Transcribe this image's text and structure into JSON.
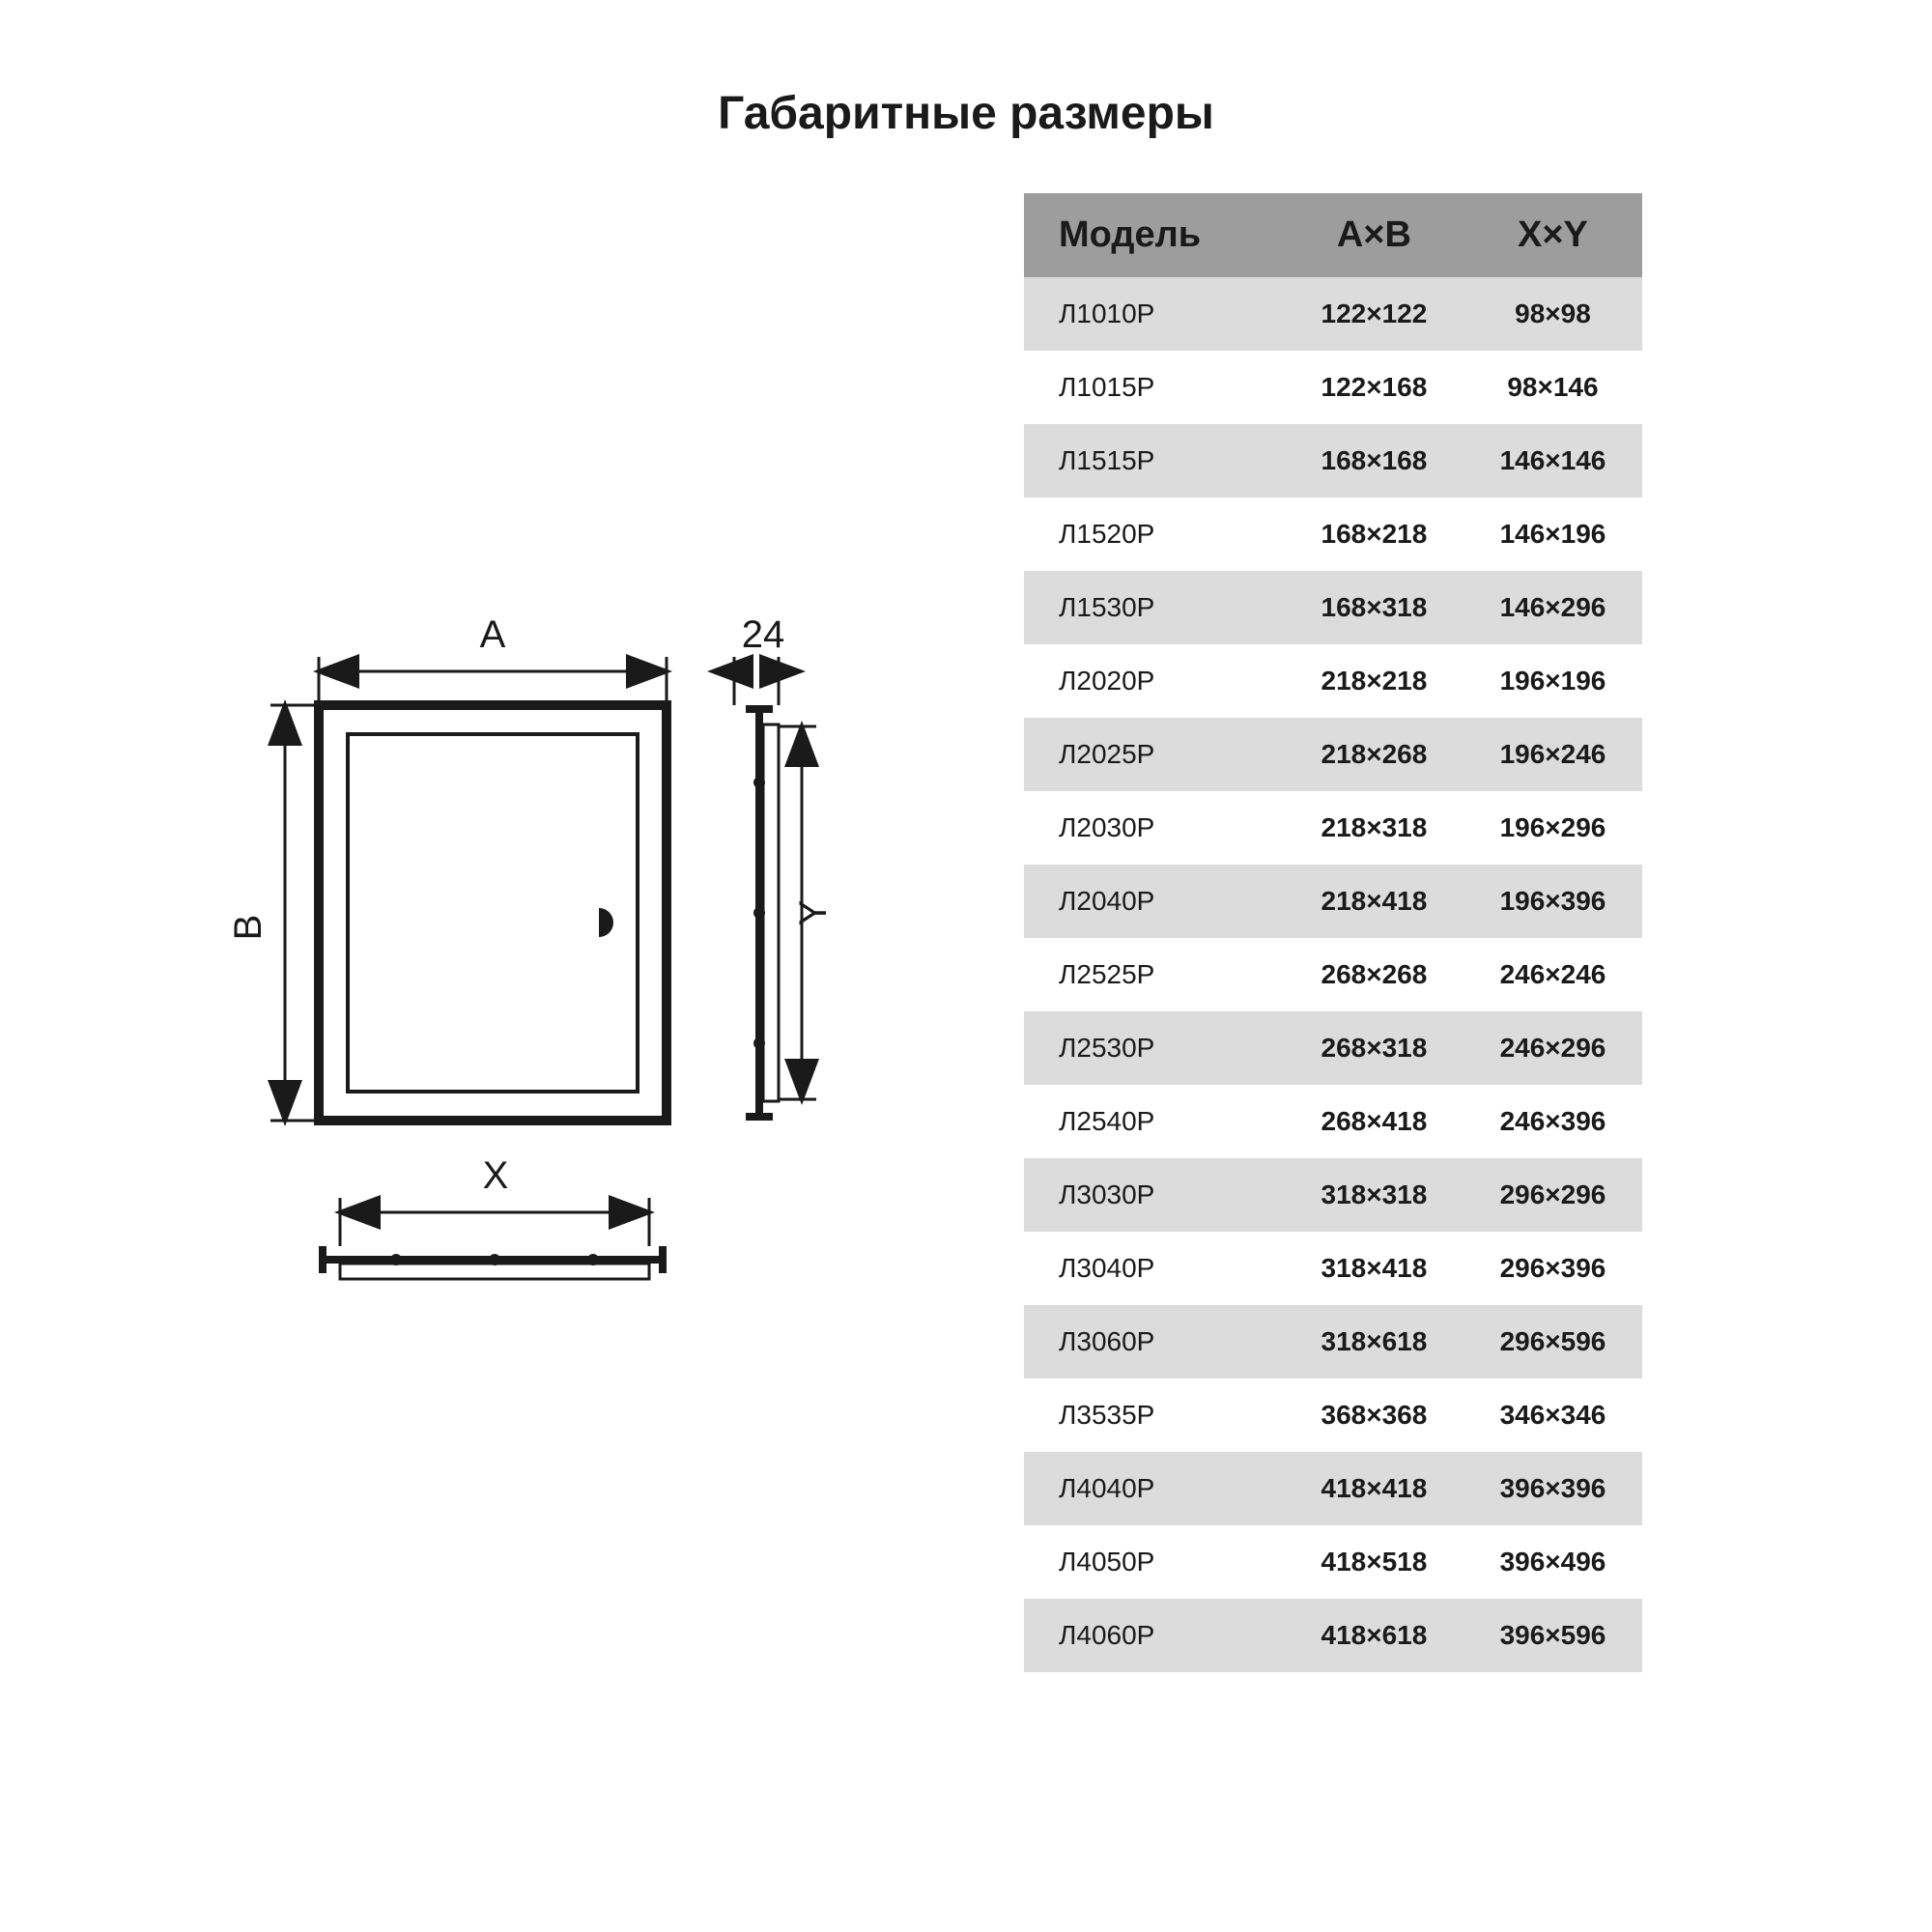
{
  "title": "Габаритные размеры",
  "diagram": {
    "labels": {
      "A": "A",
      "B": "B",
      "X": "X",
      "Y": "Y",
      "depth": "24"
    },
    "stroke": "#1a1a1a",
    "fill_bg": "#ffffff",
    "label_fontsize": 40,
    "line_width": 3
  },
  "table": {
    "header_bg": "#9d9d9d",
    "row_odd_bg": "#dcdcdc",
    "row_even_bg": "#ffffff",
    "text_color": "#1a1a1a",
    "columns": [
      "Модель",
      "A×B",
      "X×Y"
    ],
    "rows": [
      [
        "Л1010Р",
        "122×122",
        "98×98"
      ],
      [
        "Л1015Р",
        "122×168",
        "98×146"
      ],
      [
        "Л1515Р",
        "168×168",
        "146×146"
      ],
      [
        "Л1520Р",
        "168×218",
        "146×196"
      ],
      [
        "Л1530Р",
        "168×318",
        "146×296"
      ],
      [
        "Л2020Р",
        "218×218",
        "196×196"
      ],
      [
        "Л2025Р",
        "218×268",
        "196×246"
      ],
      [
        "Л2030Р",
        "218×318",
        "196×296"
      ],
      [
        "Л2040Р",
        "218×418",
        "196×396"
      ],
      [
        "Л2525Р",
        "268×268",
        "246×246"
      ],
      [
        "Л2530Р",
        "268×318",
        "246×296"
      ],
      [
        "Л2540Р",
        "268×418",
        "246×396"
      ],
      [
        "Л3030Р",
        "318×318",
        "296×296"
      ],
      [
        "Л3040Р",
        "318×418",
        "296×396"
      ],
      [
        "Л3060Р",
        "318×618",
        "296×596"
      ],
      [
        "Л3535Р",
        "368×368",
        "346×346"
      ],
      [
        "Л4040Р",
        "418×418",
        "396×396"
      ],
      [
        "Л4050Р",
        "418×518",
        "396×496"
      ],
      [
        "Л4060Р",
        "418×618",
        "396×596"
      ]
    ]
  }
}
